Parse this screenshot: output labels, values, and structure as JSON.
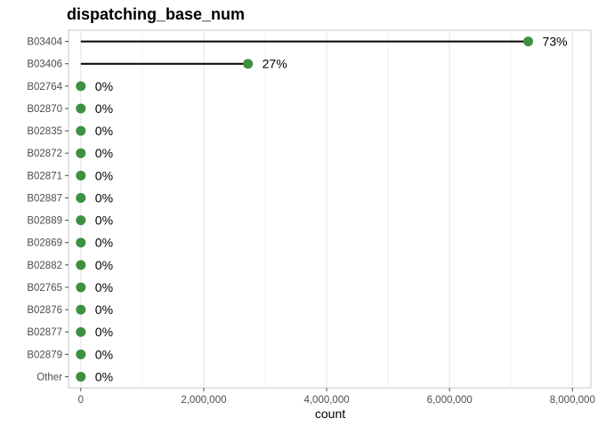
{
  "chart_data": {
    "type": "lollipop",
    "title": "dispatching_base_num",
    "xlabel": "count",
    "ylabel": "",
    "xlim": [
      -200000,
      8300000
    ],
    "xticks": [
      0,
      2000000,
      4000000,
      6000000,
      8000000
    ],
    "xtick_labels": [
      "0",
      "2,000,000",
      "4,000,000",
      "6,000,000",
      "8,000,000"
    ],
    "grid": "vertical",
    "point_color": "#3d9140",
    "line_color": "#000000",
    "categories": [
      "B03404",
      "B03406",
      "B02764",
      "B02870",
      "B02835",
      "B02872",
      "B02871",
      "B02887",
      "B02889",
      "B02869",
      "B02882",
      "B02765",
      "B02876",
      "B02877",
      "B02879",
      "Other"
    ],
    "values": [
      7280000,
      2720000,
      0,
      0,
      0,
      0,
      0,
      0,
      0,
      0,
      0,
      0,
      0,
      0,
      0,
      0
    ],
    "labels": [
      "73%",
      "27%",
      "0%",
      "0%",
      "0%",
      "0%",
      "0%",
      "0%",
      "0%",
      "0%",
      "0%",
      "0%",
      "0%",
      "0%",
      "0%",
      "0%"
    ]
  }
}
